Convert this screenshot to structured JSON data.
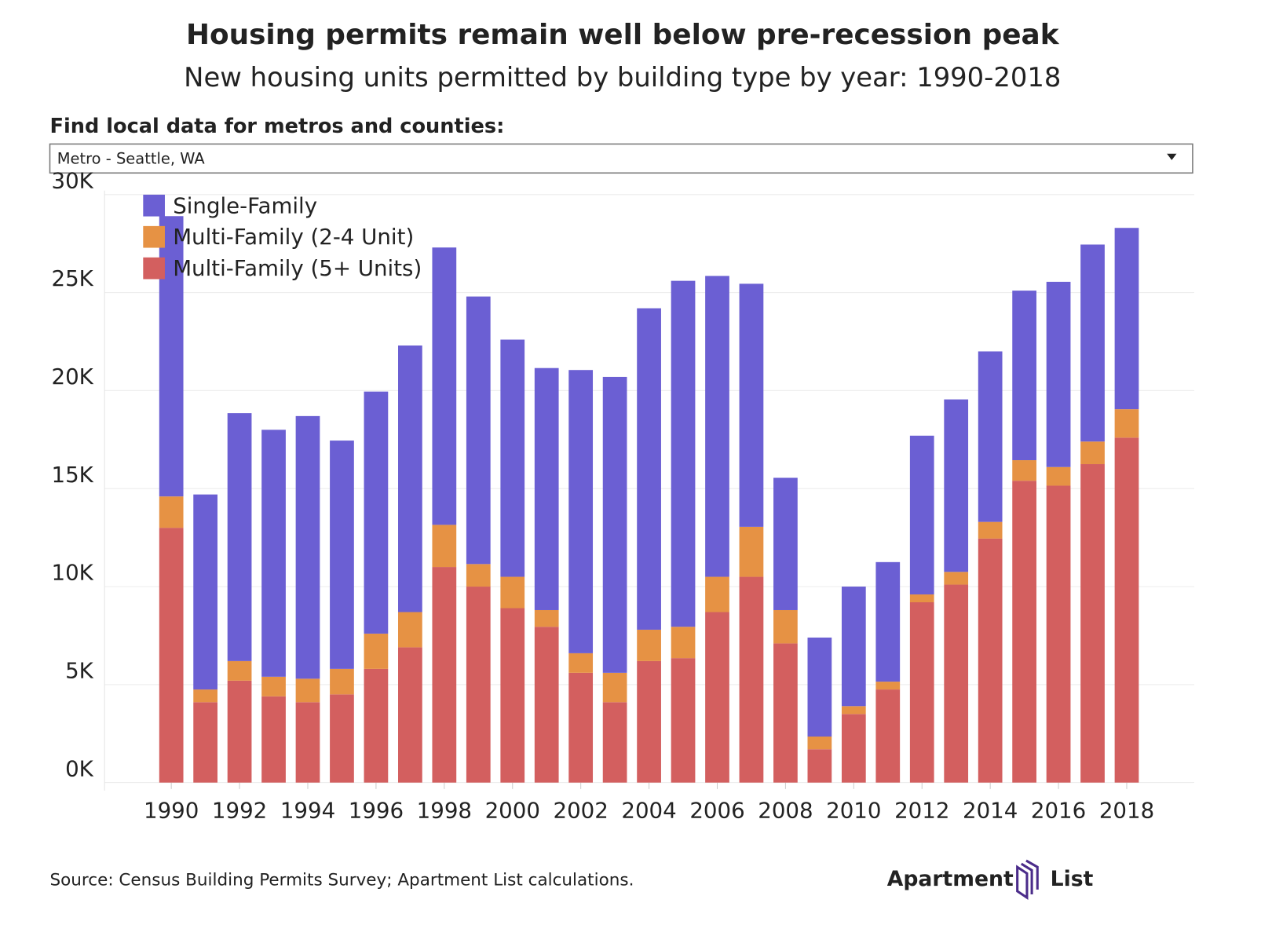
{
  "chart_data": {
    "type": "stacked-bar",
    "title": "Housing permits remain well below pre-recession peak",
    "subtitle": "New housing units permitted by building type by year: 1990-2018",
    "categories": [
      "1990",
      null,
      "1992",
      null,
      "1994",
      null,
      "1996",
      null,
      "1998",
      null,
      "2000",
      null,
      "2002",
      null,
      "2004",
      null,
      "2006",
      null,
      "2008",
      null,
      "2010",
      null,
      "2012",
      null,
      "2014",
      null,
      "2016",
      null,
      "2018"
    ],
    "series": [
      {
        "name": "Single-Family",
        "color": "#6b5fd3",
        "values": [
          14300,
          9950,
          12650,
          12600,
          13400,
          11650,
          12350,
          13600,
          14150,
          13650,
          12100,
          12350,
          14450,
          15100,
          16400,
          17650,
          15350,
          12400,
          6750,
          5050,
          6100,
          6100,
          8100,
          8800,
          8700,
          8650,
          9450,
          10050,
          9250
        ]
      },
      {
        "name": "Multi-Family (2-4 Unit)",
        "color": "#e69244",
        "values": [
          1600,
          650,
          1000,
          1000,
          1200,
          1300,
          1800,
          1800,
          2150,
          1150,
          1600,
          850,
          1000,
          1500,
          1600,
          1600,
          1800,
          2550,
          1700,
          650,
          400,
          400,
          400,
          650,
          850,
          1050,
          950,
          1150,
          1450
        ]
      },
      {
        "name": "Multi-Family (5+ Units)",
        "color": "#d35f5f",
        "values": [
          13000,
          4100,
          5200,
          4400,
          4100,
          4500,
          5800,
          6900,
          11000,
          10000,
          8900,
          7950,
          5600,
          4100,
          6200,
          6350,
          8700,
          10500,
          7100,
          1700,
          3500,
          4750,
          9200,
          10100,
          12450,
          15400,
          15150,
          16250,
          17600
        ]
      }
    ],
    "ylim": [
      0,
      30200
    ],
    "yticks": [
      {
        "value": 0,
        "label": "0K"
      },
      {
        "value": 5000,
        "label": "5K"
      },
      {
        "value": 10000,
        "label": "10K"
      },
      {
        "value": 15000,
        "label": "15K"
      },
      {
        "value": 20000,
        "label": "20K"
      },
      {
        "value": 25000,
        "label": "25K"
      },
      {
        "value": 30000,
        "label": "30K"
      }
    ],
    "grid": true,
    "legend": "top-left"
  },
  "filter": {
    "label": "Find local data for metros and counties:",
    "selected": "Metro - Seattle, WA"
  },
  "source": "Source: Census Building Permits Survey; Apartment List calculations.",
  "brand": [
    "Apartment",
    "List"
  ]
}
